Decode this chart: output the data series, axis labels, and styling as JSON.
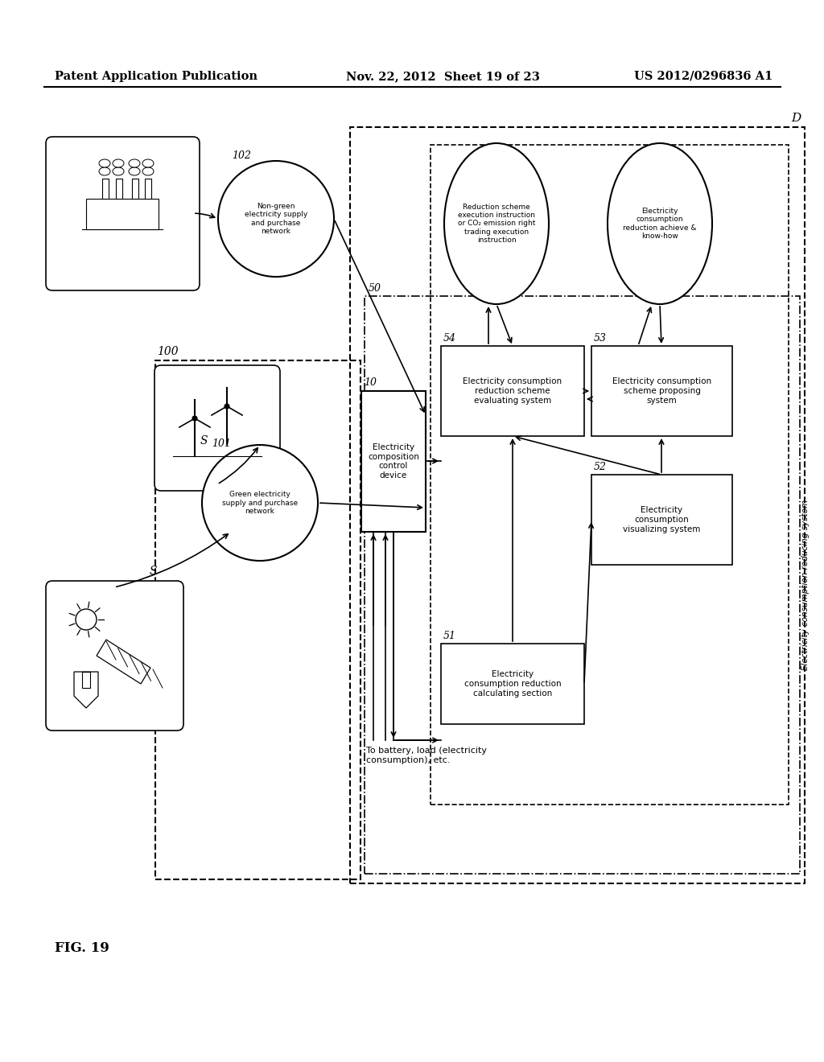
{
  "header_left": "Patent Application Publication",
  "header_mid": "Nov. 22, 2012  Sheet 19 of 23",
  "header_right": "US 2012/0296836 A1",
  "fig_label": "FIG. 19",
  "background": "#ffffff"
}
